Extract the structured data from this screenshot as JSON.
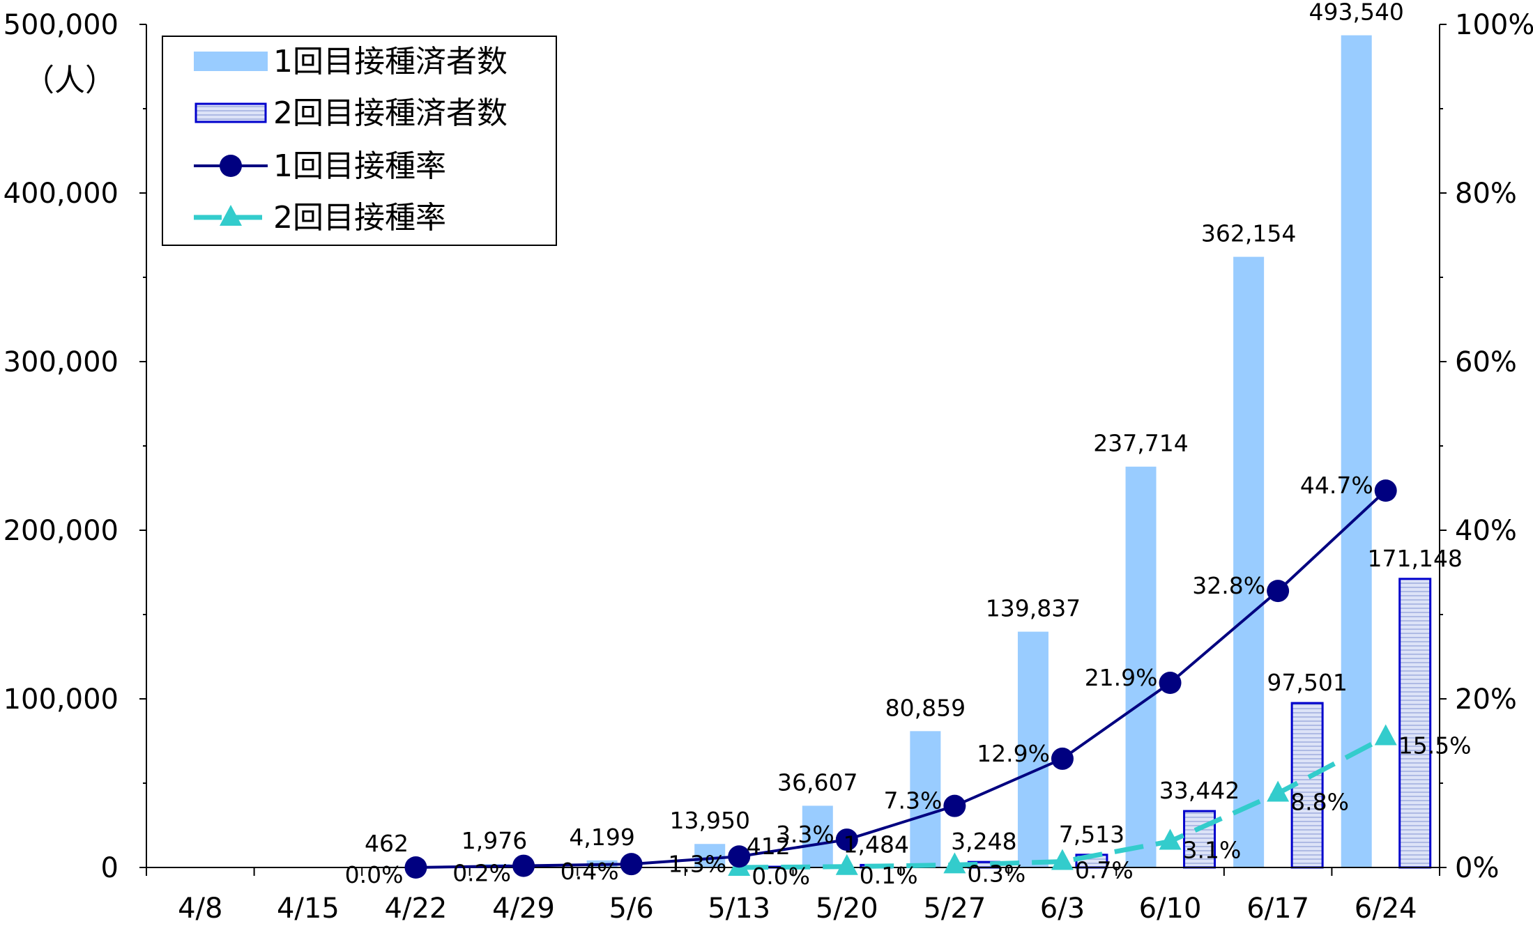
{
  "chart_data": {
    "type": "bar",
    "categories": [
      "4/8",
      "4/15",
      "4/22",
      "4/29",
      "5/6",
      "5/13",
      "5/20",
      "5/27",
      "6/3",
      "6/10",
      "6/17",
      "6/24"
    ],
    "series": [
      {
        "name": "1回目接種済者数",
        "kind": "bar",
        "axis": "left",
        "color": "#99ccff",
        "values": [
          null,
          null,
          462,
          1976,
          4199,
          13950,
          36607,
          80859,
          139837,
          237714,
          362154,
          493540
        ],
        "labels": [
          "",
          "",
          "462",
          "1,976",
          "4,199",
          "13,950",
          "36,607",
          "80,859",
          "139,837",
          "237,714",
          "362,154",
          "493,540"
        ]
      },
      {
        "name": "2回目接種済者数",
        "kind": "bar",
        "axis": "left",
        "color": "#dde3f7",
        "border": "#0000cc",
        "values": [
          null,
          null,
          null,
          null,
          null,
          412,
          1484,
          3248,
          7513,
          33442,
          97501,
          171148
        ],
        "labels": [
          "",
          "",
          "",
          "",
          "",
          "412",
          "1,484",
          "3,248",
          "7,513",
          "33,442",
          "97,501",
          "171,148"
        ]
      },
      {
        "name": "1回目接種率",
        "kind": "line",
        "axis": "right",
        "color": "#000080",
        "marker": "circle",
        "values": [
          null,
          null,
          0.0,
          0.2,
          0.4,
          1.3,
          3.3,
          7.3,
          12.9,
          21.9,
          32.8,
          44.7
        ],
        "labels": [
          "",
          "",
          "0.0%",
          "0.2%",
          "0.4%",
          "1.3%",
          "3.3%",
          "7.3%",
          "12.9%",
          "21.9%",
          "32.8%",
          "44.7%"
        ]
      },
      {
        "name": "2回目接種率",
        "kind": "line",
        "axis": "right",
        "color": "#33cccc",
        "marker": "triangle",
        "dash": true,
        "values": [
          null,
          null,
          null,
          null,
          null,
          0.0,
          0.1,
          0.3,
          0.7,
          3.1,
          8.8,
          15.5
        ],
        "labels": [
          "",
          "",
          "",
          "",
          "",
          "0.0%",
          "0.1%",
          "0.3%",
          "0.7%",
          "3.1%",
          "8.8%",
          "15.5%"
        ]
      }
    ],
    "y_left": {
      "min": 0,
      "max": 500000,
      "ticks": [
        "0",
        "100,000",
        "200,000",
        "300,000",
        "400,000",
        "500,000"
      ],
      "unit": "（人）"
    },
    "y_right": {
      "min": 0,
      "max": 100,
      "ticks": [
        "0%",
        "20%",
        "40%",
        "60%",
        "80%",
        "100%"
      ]
    },
    "legend": {
      "position": "top-left"
    },
    "grid": false
  }
}
